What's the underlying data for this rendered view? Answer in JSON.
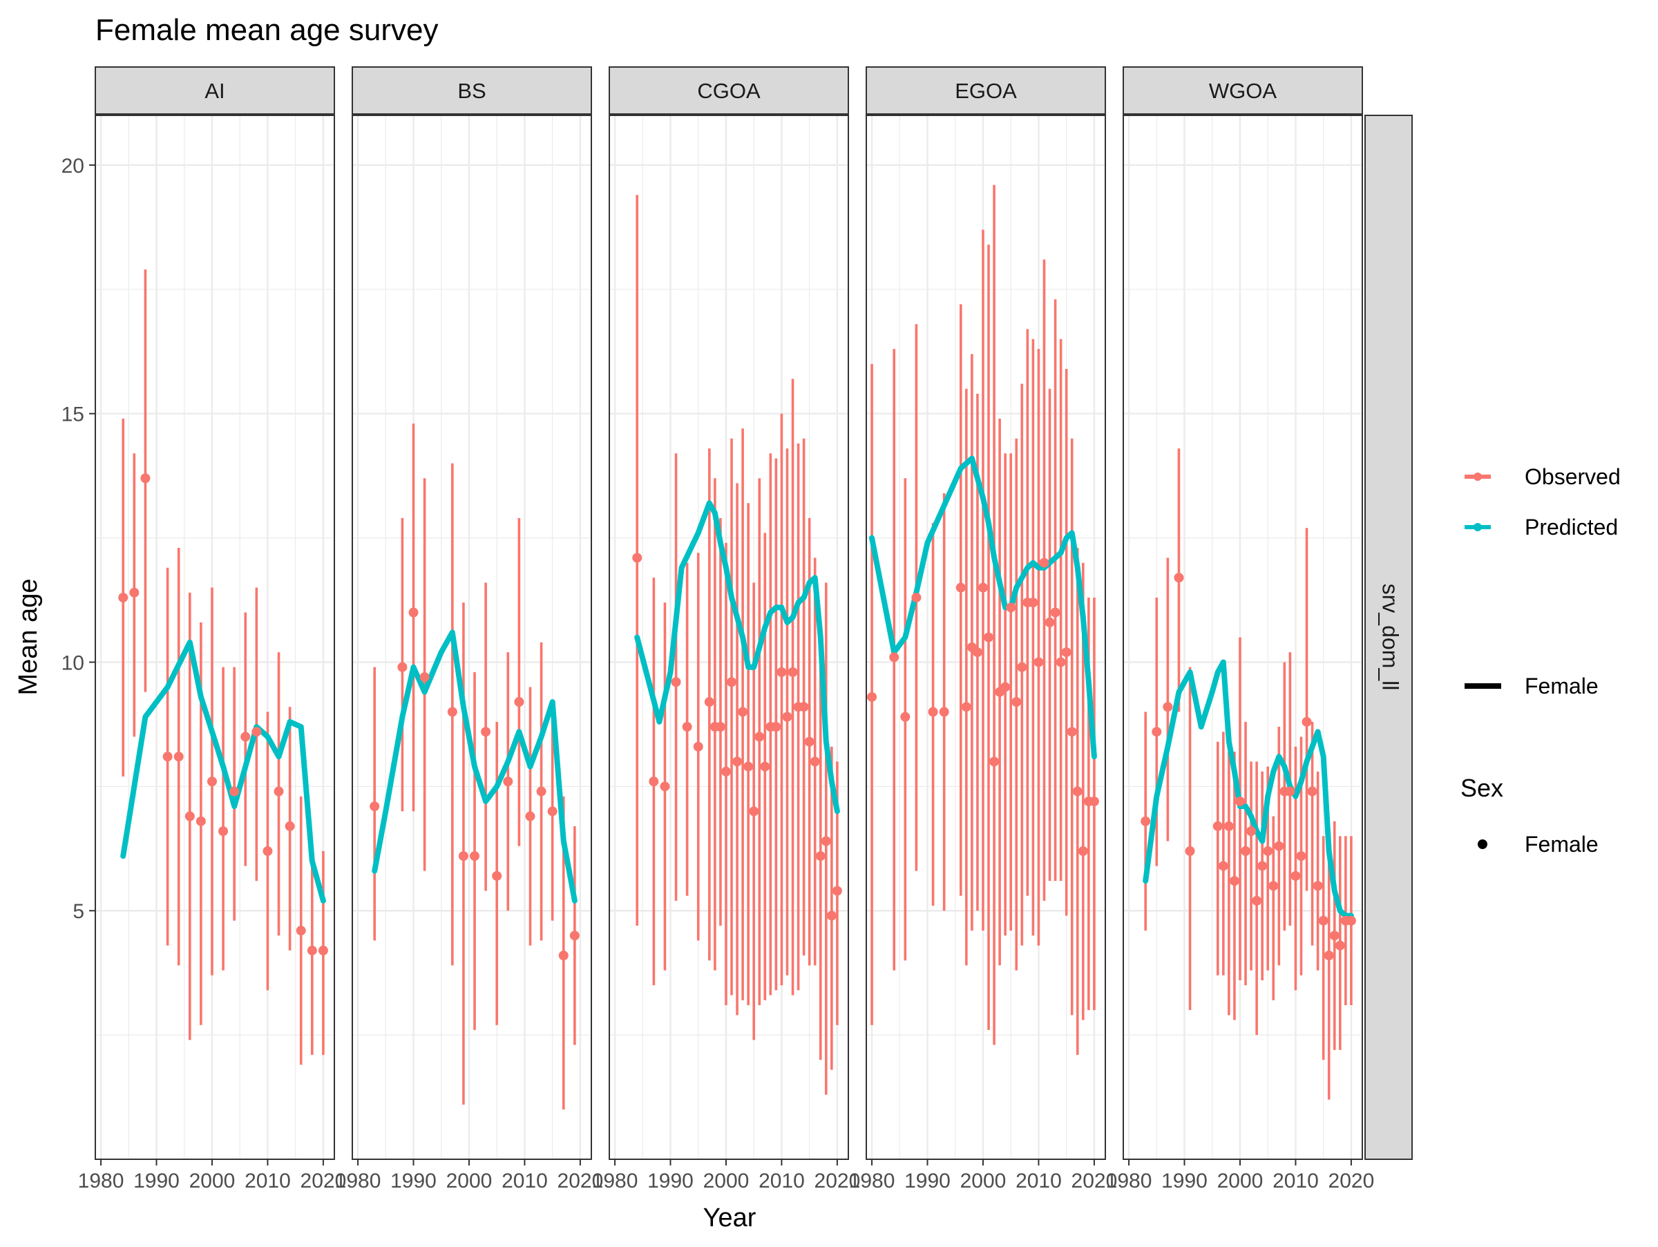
{
  "chart_data": {
    "type": "line",
    "title": "Female mean age survey",
    "xlabel": "Year",
    "ylabel": "Mean age",
    "xlim": [
      1979,
      2022
    ],
    "ylim": [
      0,
      21
    ],
    "x_ticks": [
      1980,
      1990,
      2000,
      2010,
      2020
    ],
    "x_tick_labels": [
      "1980",
      "1990",
      "2000",
      "2010",
      "2020"
    ],
    "y_ticks": [
      5,
      10,
      15,
      20
    ],
    "y_tick_labels": [
      "5",
      "10",
      "15",
      "20"
    ],
    "grid": true,
    "facet_row_label": "srv_dom_ll",
    "colors": {
      "observed": "#F8766D",
      "predicted": "#00BFC4",
      "strip_fill": "#D9D9D9",
      "grid": "#EBEBEB",
      "panel_border": "#333333"
    },
    "legend": {
      "position": "right",
      "items": [
        {
          "label": "Observed",
          "color": "#F8766D"
        },
        {
          "label": "Predicted",
          "color": "#00BFC4"
        }
      ],
      "linetype_item": "Female",
      "shape_title": "Sex",
      "shape_item": "Female"
    },
    "panels": [
      {
        "name": "AI",
        "observed": {
          "x": [
            1984,
            1986,
            1988,
            1992,
            1994,
            1996,
            1998,
            2000,
            2002,
            2004,
            2006,
            2008,
            2010,
            2012,
            2014,
            2016,
            2018,
            2020
          ],
          "y": [
            11.3,
            11.4,
            13.7,
            8.1,
            8.1,
            6.9,
            6.8,
            7.6,
            6.6,
            7.4,
            8.5,
            8.6,
            6.2,
            7.4,
            6.7,
            4.6,
            4.2,
            4.2
          ],
          "ylo": [
            7.7,
            8.5,
            9.4,
            4.3,
            3.9,
            2.4,
            2.7,
            3.7,
            3.8,
            4.8,
            5.9,
            5.6,
            3.4,
            4.5,
            4.2,
            1.9,
            2.1,
            2.1
          ],
          "yhi": [
            14.9,
            14.2,
            17.9,
            11.9,
            12.3,
            11.4,
            10.8,
            11.5,
            9.9,
            9.9,
            11.0,
            11.5,
            9.0,
            10.2,
            9.1,
            7.3,
            6.2,
            6.2
          ]
        },
        "predicted": {
          "x": [
            1984,
            1988,
            1992,
            1996,
            1998,
            2000,
            2002,
            2004,
            2006,
            2008,
            2010,
            2012,
            2014,
            2016,
            2018,
            2020
          ],
          "y": [
            6.1,
            8.9,
            9.5,
            10.4,
            9.3,
            8.6,
            7.9,
            7.1,
            7.9,
            8.7,
            8.5,
            8.1,
            8.8,
            8.7,
            6.0,
            5.2
          ]
        }
      },
      {
        "name": "BS",
        "observed": {
          "x": [
            1983,
            1988,
            1990,
            1992,
            1997,
            1999,
            2001,
            2003,
            2005,
            2007,
            2009,
            2011,
            2013,
            2015,
            2017,
            2019
          ],
          "y": [
            7.1,
            9.9,
            11.0,
            9.7,
            9.0,
            6.1,
            6.1,
            8.6,
            5.7,
            7.6,
            9.2,
            6.9,
            7.4,
            7.0,
            4.1,
            4.5
          ],
          "ylo": [
            4.4,
            7.0,
            7.0,
            5.8,
            3.9,
            1.1,
            2.6,
            5.4,
            2.7,
            5.0,
            6.3,
            4.3,
            4.4,
            4.8,
            1.0,
            2.3
          ],
          "yhi": [
            9.9,
            12.9,
            14.8,
            13.7,
            14.0,
            11.2,
            9.8,
            11.6,
            8.8,
            10.2,
            12.9,
            9.5,
            10.4,
            9.2,
            7.3,
            6.7
          ]
        },
        "predicted": {
          "x": [
            1983,
            1985,
            1988,
            1990,
            1992,
            1995,
            1997,
            1999,
            2001,
            2003,
            2005,
            2007,
            2009,
            2011,
            2013,
            2015,
            2017,
            2019
          ],
          "y": [
            5.8,
            7.0,
            8.9,
            9.9,
            9.4,
            10.2,
            10.6,
            9.1,
            7.9,
            7.2,
            7.5,
            8.0,
            8.6,
            7.9,
            8.5,
            9.2,
            6.4,
            5.2
          ]
        }
      },
      {
        "name": "CGOA",
        "observed": {
          "x": [
            1984,
            1987,
            1989,
            1991,
            1993,
            1995,
            1997,
            1998,
            1999,
            2000,
            2001,
            2002,
            2003,
            2004,
            2005,
            2006,
            2007,
            2008,
            2009,
            2010,
            2011,
            2012,
            2013,
            2014,
            2015,
            2016,
            2017,
            2018,
            2019,
            2020
          ],
          "y": [
            12.1,
            7.6,
            7.5,
            9.6,
            8.7,
            8.3,
            9.2,
            8.7,
            8.7,
            7.8,
            9.6,
            8.0,
            9.0,
            7.9,
            7.0,
            8.5,
            7.9,
            8.7,
            8.7,
            9.8,
            8.9,
            9.8,
            9.1,
            9.1,
            8.4,
            8.0,
            6.1,
            6.4,
            4.9,
            5.4
          ],
          "ylo": [
            4.7,
            3.5,
            3.8,
            5.2,
            5.3,
            4.4,
            4.0,
            3.8,
            4.7,
            3.1,
            3.3,
            2.9,
            3.2,
            3.1,
            2.4,
            3.1,
            3.2,
            3.3,
            3.4,
            3.5,
            3.7,
            3.3,
            3.4,
            4.1,
            3.9,
            3.9,
            2.0,
            1.3,
            1.8,
            2.7
          ],
          "yhi": [
            19.4,
            11.7,
            11.2,
            14.2,
            12.0,
            12.2,
            14.3,
            13.7,
            12.9,
            12.4,
            14.5,
            13.6,
            14.7,
            13.2,
            11.6,
            13.7,
            12.6,
            14.2,
            14.1,
            15.0,
            14.3,
            15.7,
            14.4,
            14.5,
            12.9,
            12.1,
            10.2,
            11.6,
            8.3,
            8.0
          ]
        },
        "predicted": {
          "x": [
            1984,
            1988,
            1990,
            1992,
            1995,
            1997,
            1998,
            1999,
            2000,
            2001,
            2002,
            2003,
            2004,
            2005,
            2006,
            2007,
            2008,
            2009,
            2010,
            2011,
            2012,
            2013,
            2014,
            2015,
            2016,
            2017,
            2018,
            2019,
            2020
          ],
          "y": [
            10.5,
            8.8,
            9.8,
            11.9,
            12.6,
            13.2,
            13.0,
            12.4,
            11.9,
            11.3,
            10.9,
            10.5,
            9.9,
            9.9,
            10.3,
            10.7,
            11.0,
            11.1,
            11.1,
            10.8,
            10.9,
            11.2,
            11.3,
            11.6,
            11.7,
            10.5,
            8.4,
            7.6,
            7.0
          ]
        }
      },
      {
        "name": "EGOA",
        "observed": {
          "x": [
            1980,
            1984,
            1986,
            1988,
            1991,
            1993,
            1996,
            1997,
            1998,
            1999,
            2000,
            2001,
            2002,
            2003,
            2004,
            2005,
            2006,
            2007,
            2008,
            2009,
            2010,
            2011,
            2012,
            2013,
            2014,
            2015,
            2016,
            2017,
            2018,
            2019,
            2020
          ],
          "y": [
            9.3,
            10.1,
            8.9,
            11.3,
            9.0,
            9.0,
            11.5,
            9.1,
            10.3,
            10.2,
            11.5,
            10.5,
            8.0,
            9.4,
            9.5,
            11.1,
            9.2,
            9.9,
            11.2,
            11.2,
            10.0,
            12.0,
            10.8,
            11.0,
            10.0,
            10.2,
            8.6,
            7.4,
            6.2,
            7.2,
            7.2
          ],
          "ylo": [
            2.7,
            3.8,
            4.0,
            5.8,
            5.1,
            5.0,
            5.3,
            3.9,
            4.6,
            5.0,
            4.6,
            2.6,
            2.3,
            3.9,
            4.5,
            4.6,
            3.8,
            4.3,
            5.3,
            4.5,
            4.3,
            5.2,
            5.6,
            5.6,
            5.6,
            4.9,
            2.9,
            2.1,
            2.8,
            3.0,
            3.0
          ],
          "yhi": [
            16.0,
            16.3,
            13.7,
            16.8,
            12.8,
            13.4,
            17.2,
            15.5,
            16.2,
            15.4,
            18.7,
            18.4,
            19.6,
            14.9,
            14.2,
            14.2,
            14.5,
            15.6,
            16.7,
            16.5,
            16.3,
            18.1,
            15.5,
            17.3,
            16.5,
            15.9,
            14.5,
            12.3,
            12.0,
            11.3,
            11.3
          ]
        },
        "predicted": {
          "x": [
            1980,
            1984,
            1986,
            1988,
            1990,
            1992,
            1994,
            1996,
            1997,
            1998,
            1999,
            2000,
            2001,
            2002,
            2003,
            2004,
            2005,
            2006,
            2007,
            2008,
            2009,
            2010,
            2011,
            2012,
            2013,
            2014,
            2015,
            2016,
            2017,
            2018,
            2019,
            2020
          ],
          "y": [
            12.5,
            10.2,
            10.5,
            11.4,
            12.4,
            12.9,
            13.4,
            13.9,
            14.0,
            14.1,
            13.7,
            13.3,
            12.8,
            12.1,
            11.6,
            11.1,
            11.1,
            11.5,
            11.7,
            11.9,
            12.0,
            11.9,
            11.9,
            12.0,
            12.1,
            12.2,
            12.5,
            12.6,
            11.9,
            10.9,
            9.6,
            8.1
          ]
        }
      },
      {
        "name": "WGOA",
        "observed": {
          "x": [
            1983,
            1985,
            1987,
            1989,
            1991,
            1996,
            1997,
            1998,
            1999,
            2000,
            2001,
            2002,
            2003,
            2004,
            2005,
            2006,
            2007,
            2008,
            2009,
            2010,
            2011,
            2012,
            2013,
            2014,
            2015,
            2016,
            2017,
            2018,
            2019,
            2020
          ],
          "y": [
            6.8,
            8.6,
            9.1,
            11.7,
            6.2,
            6.7,
            5.9,
            6.7,
            5.6,
            7.2,
            6.2,
            6.6,
            5.2,
            5.9,
            6.2,
            5.5,
            6.3,
            7.4,
            7.4,
            5.7,
            6.1,
            8.8,
            7.4,
            5.5,
            4.8,
            4.1,
            4.5,
            4.3,
            4.8,
            4.8
          ],
          "ylo": [
            4.6,
            5.9,
            6.4,
            9.0,
            3.0,
            3.7,
            3.7,
            2.9,
            2.8,
            3.6,
            3.5,
            3.8,
            2.5,
            3.6,
            3.8,
            3.2,
            3.9,
            4.6,
            4.7,
            3.4,
            3.7,
            5.4,
            4.3,
            3.8,
            2.0,
            1.2,
            2.2,
            2.2,
            3.1,
            3.1
          ],
          "yhi": [
            9.0,
            11.3,
            12.1,
            14.3,
            9.9,
            8.4,
            8.6,
            8.2,
            8.2,
            10.5,
            8.8,
            8.0,
            8.0,
            7.8,
            7.9,
            6.9,
            8.7,
            10.0,
            10.2,
            8.3,
            8.5,
            12.7,
            8.8,
            7.8,
            6.5,
            6.4,
            6.8,
            6.5,
            6.5,
            6.5
          ]
        },
        "predicted": {
          "x": [
            1983,
            1985,
            1987,
            1989,
            1991,
            1993,
            1995,
            1996,
            1997,
            1998,
            1999,
            2000,
            2001,
            2002,
            2003,
            2004,
            2005,
            2006,
            2007,
            2008,
            2009,
            2010,
            2011,
            2012,
            2013,
            2014,
            2015,
            2016,
            2017,
            2018,
            2019,
            2020
          ],
          "y": [
            5.6,
            7.3,
            8.3,
            9.4,
            9.8,
            8.7,
            9.4,
            9.8,
            10.0,
            8.4,
            7.8,
            7.1,
            7.1,
            6.9,
            6.6,
            6.4,
            7.3,
            7.8,
            8.1,
            7.9,
            7.5,
            7.3,
            7.6,
            8.0,
            8.3,
            8.6,
            8.1,
            6.2,
            5.4,
            5.0,
            4.9,
            4.9
          ]
        }
      }
    ]
  }
}
